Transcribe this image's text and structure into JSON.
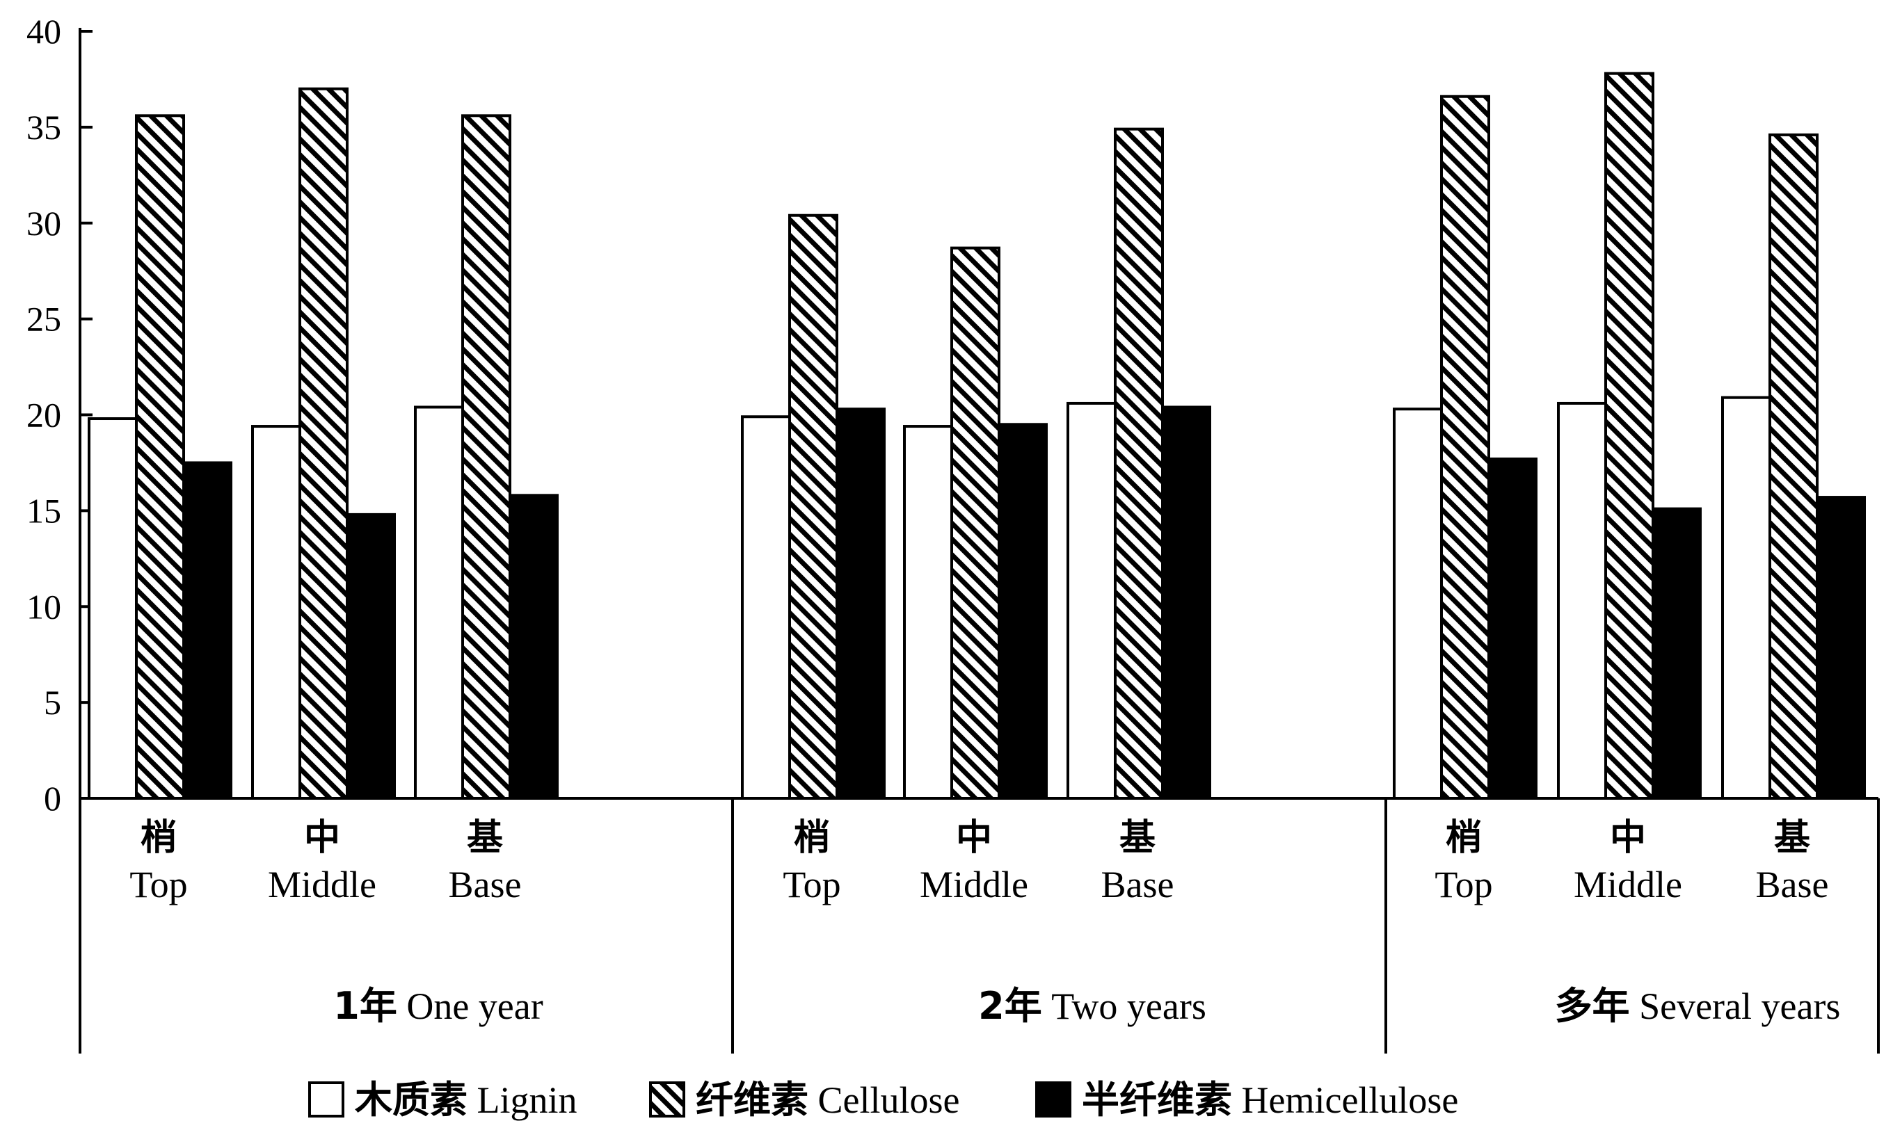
{
  "chart_data": {
    "type": "bar",
    "title": "",
    "xlabel": "",
    "ylabel": "",
    "ylim": [
      0,
      40
    ],
    "yticks": [
      0,
      5,
      10,
      15,
      20,
      25,
      30,
      35,
      40
    ],
    "grid": false,
    "legend_position": "bottom",
    "groups": [
      {
        "label_zh": "1年",
        "label_en": "One year",
        "positions": [
          {
            "zh": "梢",
            "en": "Top"
          },
          {
            "zh": "中",
            "en": "Middle"
          },
          {
            "zh": "基",
            "en": "Base"
          }
        ]
      },
      {
        "label_zh": "2年",
        "label_en": "Two years",
        "positions": [
          {
            "zh": "梢",
            "en": "Top"
          },
          {
            "zh": "中",
            "en": "Middle"
          },
          {
            "zh": "基",
            "en": "Base"
          }
        ]
      },
      {
        "label_zh": "多年",
        "label_en": "Several years",
        "positions": [
          {
            "zh": "梢",
            "en": "Top"
          },
          {
            "zh": "中",
            "en": "Middle"
          },
          {
            "zh": "基",
            "en": "Base"
          }
        ]
      }
    ],
    "series": [
      {
        "name_zh": "木质素",
        "name_en": "Lignin",
        "fill": "white",
        "values": [
          19.8,
          19.4,
          20.4,
          19.9,
          19.4,
          20.6,
          20.3,
          20.6,
          20.9
        ]
      },
      {
        "name_zh": "纤维素",
        "name_en": "Cellulose",
        "fill": "hatched",
        "values": [
          35.6,
          37.0,
          35.6,
          30.4,
          28.7,
          34.9,
          36.6,
          37.8,
          34.6
        ]
      },
      {
        "name_zh": "半纤维素",
        "name_en": "Hemicellulose",
        "fill": "black",
        "values": [
          17.5,
          14.8,
          15.8,
          20.3,
          19.5,
          20.4,
          17.7,
          15.1,
          15.7
        ]
      }
    ]
  },
  "colors": {
    "axis": "#000000",
    "bar_outline": "#000000",
    "white_fill": "#ffffff",
    "black_fill": "#000000"
  }
}
